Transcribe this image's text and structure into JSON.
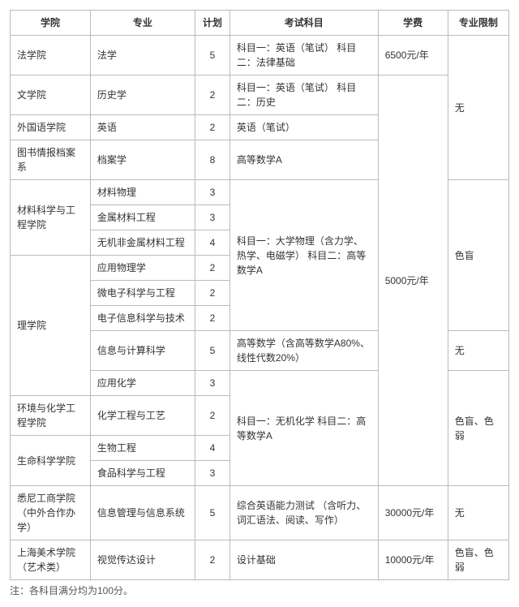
{
  "headers": {
    "college": "学院",
    "major": "专业",
    "plan": "计划",
    "subjects": "考试科目",
    "fee": "学费",
    "restriction": "专业限制"
  },
  "rows": [
    {
      "college": "法学院",
      "major": "法学",
      "plan": "5"
    },
    {
      "college": "文学院",
      "major": "历史学",
      "plan": "2"
    },
    {
      "college": "外国语学院",
      "major": "英语",
      "plan": "2"
    },
    {
      "college": "图书情报档案系",
      "major": "档案学",
      "plan": "8"
    },
    {
      "college": "材料科学与工程学院",
      "major": "材料物理",
      "plan": "3"
    },
    {
      "major": "金属材料工程",
      "plan": "3"
    },
    {
      "major": "无机非金属材料工程",
      "plan": "4"
    },
    {
      "college": "理学院",
      "major": "应用物理学",
      "plan": "2"
    },
    {
      "major": "微电子科学与工程",
      "plan": "2"
    },
    {
      "major": "电子信息科学与技术",
      "plan": "2"
    },
    {
      "major": "信息与计算科学",
      "plan": "5"
    },
    {
      "major": "应用化学",
      "plan": "3"
    },
    {
      "college": "环境与化学工程学院",
      "major": "化学工程与工艺",
      "plan": "2"
    },
    {
      "college": "生命科学学院",
      "major": "生物工程",
      "plan": "4"
    },
    {
      "major": "食品科学与工程",
      "plan": "3"
    },
    {
      "college": "悉尼工商学院（中外合作办学）",
      "major": "信息管理与信息系统",
      "plan": "5"
    },
    {
      "college": "上海美术学院（艺术类）",
      "major": "视觉传达设计",
      "plan": "2"
    }
  ],
  "subjects": {
    "law": "科目一：英语（笔试）\n科目二：法律基础",
    "history": "科目一：英语（笔试）\n科目二：历史",
    "english": "英语（笔试）",
    "archive": "高等数学A",
    "physics": "科目一：大学物理（含力学、热学、电磁学）\n科目二：高等数学A",
    "math": "高等数学（含高等数学A80%、线性代数20%）",
    "chem": "科目一：无机化学\n科目二：高等数学A",
    "info": "综合英语能力测试\n（含听力、词汇语法、阅读、写作）",
    "art": "设计基础"
  },
  "fees": {
    "f6500": "6500元/年",
    "f5000": "5000元/年",
    "f30000": "30000元/年",
    "f10000": "10000元/年"
  },
  "restrictions": {
    "none": "无",
    "cb": "色盲",
    "cbcw": "色盲、色弱"
  },
  "note": "注：各科目满分均为100分。"
}
